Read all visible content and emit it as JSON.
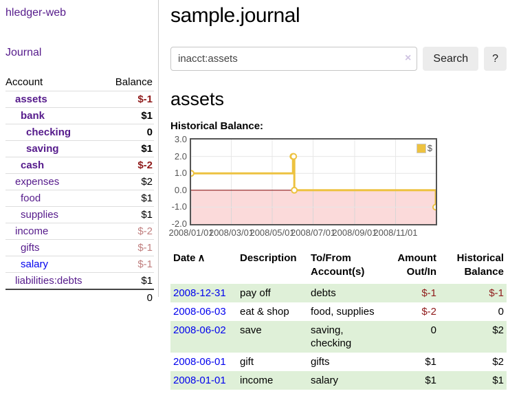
{
  "app": {
    "title": "hledger-web",
    "nav_journal": "Journal"
  },
  "sidebar": {
    "col_account": "Account",
    "col_balance": "Balance",
    "rows": [
      {
        "account": "assets",
        "balance": "$-1",
        "level": 1,
        "bold": true,
        "neg": true
      },
      {
        "account": "bank",
        "balance": "$1",
        "level": 2,
        "bold": true
      },
      {
        "account": "checking",
        "balance": "0",
        "level": 3,
        "bold": true
      },
      {
        "account": "saving",
        "balance": "$1",
        "level": 3,
        "bold": true
      },
      {
        "account": "cash",
        "balance": "$-2",
        "level": 2,
        "bold": true,
        "neg": true
      },
      {
        "account": "expenses",
        "balance": "$2",
        "level": 1
      },
      {
        "account": "food",
        "balance": "$1",
        "level": 2
      },
      {
        "account": "supplies",
        "balance": "$1",
        "level": 2
      },
      {
        "account": "income",
        "balance": "$-2",
        "level": 1,
        "dim_neg": true
      },
      {
        "account": "gifts",
        "balance": "$-1",
        "level": 2,
        "dim_neg": true
      },
      {
        "account": "salary",
        "balance": "$-1",
        "level": 2,
        "dim_neg": true,
        "unvisited": true
      },
      {
        "account": "liabilities:debts",
        "balance": "$1",
        "level": 1
      }
    ],
    "total": "0"
  },
  "header": {
    "title": "sample.journal"
  },
  "search": {
    "value": "inacct:assets",
    "clear_icon": "×",
    "button_label": "Search",
    "help_label": "?"
  },
  "account_page": {
    "heading": "assets",
    "chart_label": "Historical Balance:"
  },
  "chart_data": {
    "type": "line",
    "title": "Historical Balance",
    "steps": true,
    "series": [
      {
        "name": "$",
        "color": "#edc240",
        "points": [
          [
            "2008-01-01",
            1
          ],
          [
            "2008-06-01",
            2
          ],
          [
            "2008-06-02",
            2
          ],
          [
            "2008-06-03",
            0
          ],
          [
            "2008-12-31",
            -1
          ]
        ]
      }
    ],
    "x_ticks": [
      "2008/01/01",
      "2008/03/01",
      "2008/05/01",
      "2008/07/01",
      "2008/09/01",
      "2008/11/01"
    ],
    "y_ticks": [
      3.0,
      2.0,
      1.0,
      0.0,
      -1.0,
      -2.0
    ],
    "ylim": [
      -2,
      3
    ],
    "xlim": [
      "2008-01-01",
      "2008-12-31"
    ],
    "grid": true,
    "legend_position": "top-right",
    "gridline_color": "#e6e6e6",
    "negative_region_fill": "#fbdada",
    "zero_line_color": "#800000"
  },
  "register": {
    "columns": [
      "Date",
      "Description",
      "To/From Account(s)",
      "Amount Out/In",
      "Historical Balance"
    ],
    "sort_icon": "∧",
    "rows": [
      {
        "date": "2008-12-31",
        "description": "pay off",
        "accounts": "debts",
        "amount": "$-1",
        "amount_neg": true,
        "balance": "$-1",
        "balance_neg": true
      },
      {
        "date": "2008-06-03",
        "description": "eat & shop",
        "accounts": "food, supplies",
        "amount": "$-2",
        "amount_neg": true,
        "balance": "0",
        "balance_neg": false
      },
      {
        "date": "2008-06-02",
        "description": "save",
        "accounts": "saving, checking",
        "amount": "0",
        "amount_neg": false,
        "balance": "$2",
        "balance_neg": false
      },
      {
        "date": "2008-06-01",
        "description": "gift",
        "accounts": "gifts",
        "amount": "$1",
        "amount_neg": false,
        "balance": "$2",
        "balance_neg": false
      },
      {
        "date": "2008-01-01",
        "description": "income",
        "accounts": "salary",
        "amount": "$1",
        "amount_neg": false,
        "balance": "$1",
        "balance_neg": false
      }
    ]
  },
  "colors": {
    "link_visited_purple": "#551a8b",
    "link_blue": "#0000ee",
    "negative_red": "#8f1a1a",
    "dim_negative_red": "#c07f7f",
    "row_green": "#dff0d8",
    "chart_gold": "#edc240"
  }
}
